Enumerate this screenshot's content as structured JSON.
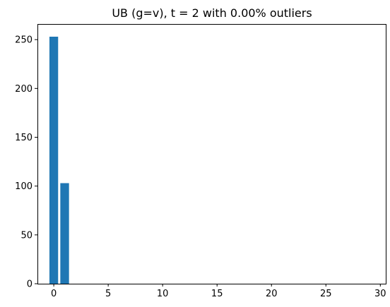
{
  "chart_data": {
    "type": "bar",
    "title": "UB (g=v),  t = 2 with 0.00% outliers",
    "xlabel": "",
    "ylabel": "",
    "x": [
      0,
      1
    ],
    "values": [
      253,
      103
    ],
    "bar_width": 0.8,
    "xlim": [
      -1.5,
      30.5
    ],
    "ylim": [
      0,
      266
    ],
    "xticks": [
      0,
      5,
      10,
      15,
      20,
      25,
      30
    ],
    "yticks": [
      0,
      50,
      100,
      150,
      200,
      250
    ],
    "bar_color": "#1f77b4",
    "grid": false,
    "legend": "none"
  }
}
